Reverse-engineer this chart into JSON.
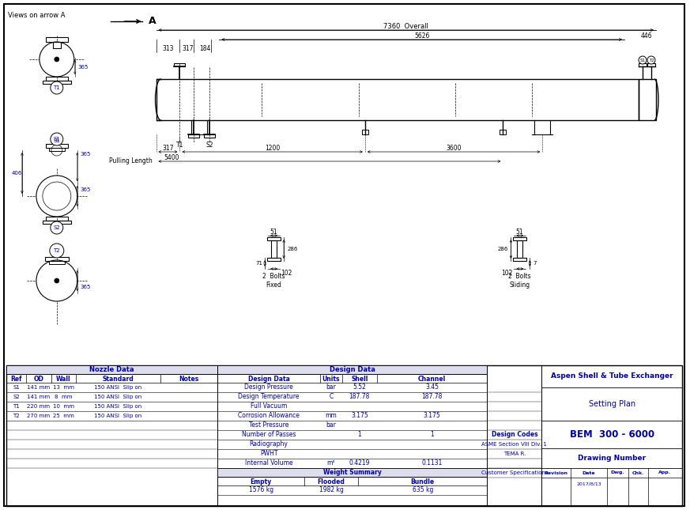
{
  "bg_color": "#ffffff",
  "blue_color": "#0000aa",
  "title": "Views on arrow A",
  "arrow_label": "A",
  "overall_dim": "7360  Overall",
  "dim_5626": "5626",
  "dim_446": "446",
  "dim_313": "313",
  "dim_317_top": "317",
  "dim_184": "184",
  "dim_317_bot": "317",
  "dim_1200": "1200",
  "dim_3600": "3600",
  "dim_5400": "5400",
  "pulling_length": "Pulling Length",
  "bolt_fixed_label": "2  Bolts\nFixed",
  "bolt_sliding_label": "2  Bolts\nSliding",
  "nozzle_header": "Nozzle Data",
  "design_header": "Design Data",
  "col_headers": [
    "Ref",
    "OD",
    "Wall",
    "Standard",
    "Notes"
  ],
  "nozzle_rows": [
    [
      "S1",
      "141 mm",
      "13  mm",
      "150 ANSI  Slip on",
      ""
    ],
    [
      "S2",
      "141 mm",
      "8  mm",
      "150 ANSI  Slip on",
      ""
    ],
    [
      "T1",
      "220 mm",
      "10  mm",
      "150 ANSI  Slip on",
      ""
    ],
    [
      "T2",
      "270 mm",
      "25  mm",
      "150 ANSI  Slip on",
      ""
    ]
  ],
  "design_col_headers": [
    "Design Data",
    "Units",
    "Shell",
    "Channel"
  ],
  "design_rows": [
    [
      "Design Pressure",
      "bar",
      "5.52",
      "3.45"
    ],
    [
      "Design Temperature",
      "C",
      "187.78",
      "187.78"
    ],
    [
      "Full Vacuum",
      "",
      "",
      ""
    ],
    [
      "Corrosion Allowance",
      "mm",
      "3.175",
      "3.175"
    ],
    [
      "Test Pressure",
      "bar",
      "",
      ""
    ],
    [
      "Number of Passes",
      "",
      "1",
      "1"
    ],
    [
      "Radiography",
      "",
      "",
      ""
    ],
    [
      "PWHT",
      "",
      "",
      ""
    ],
    [
      "Internal Volume",
      "m³",
      "0.4219",
      "0.1131"
    ]
  ],
  "design_codes_label": "Design Codes",
  "design_codes_val": "ASME Section VIII Div. 1",
  "tema_val": "TEMA R.",
  "customer_specs": "Customer Specifications",
  "weight_summary": "Weight Summary",
  "weight_headers": [
    "Empty",
    "Flooded",
    "Bundle"
  ],
  "weight_values": [
    "1576 kg",
    "1982 kg",
    "635 kg"
  ],
  "title_box1": "Aspen Shell & Tube Exchanger",
  "title_box2": "Setting Plan",
  "title_box3": "BEM  300 - 6000",
  "title_box4": "Drawing Number",
  "revision_headers": [
    "Revision",
    "Date",
    "Dwg.",
    "Chk.",
    "App."
  ],
  "revision_values": [
    "",
    "2017/8/13",
    "",
    "",
    ""
  ]
}
